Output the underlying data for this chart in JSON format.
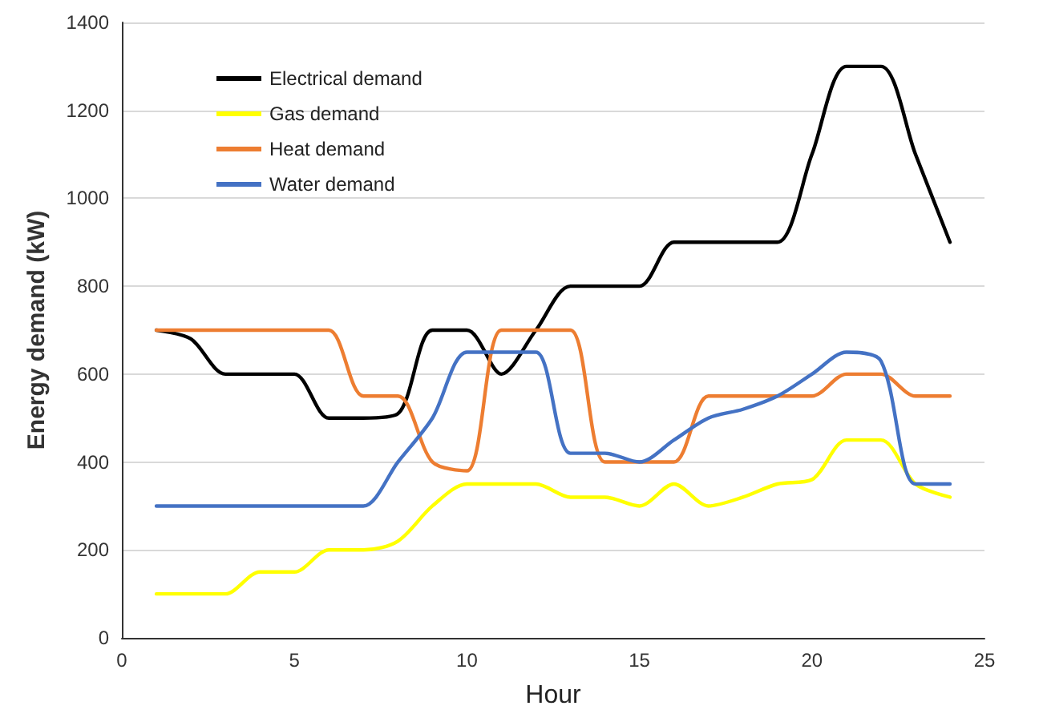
{
  "chart_data": {
    "type": "line",
    "xlabel": "Hour",
    "ylabel": "Energy demand (kW)",
    "x": [
      1,
      2,
      3,
      4,
      5,
      6,
      7,
      8,
      9,
      10,
      11,
      12,
      13,
      14,
      15,
      16,
      17,
      18,
      19,
      20,
      21,
      22,
      23,
      24
    ],
    "series": [
      {
        "name": "Electrical demand",
        "color": "#000000",
        "values": [
          700,
          680,
          600,
          600,
          600,
          500,
          500,
          510,
          700,
          700,
          600,
          700,
          800,
          800,
          800,
          900,
          900,
          900,
          900,
          1100,
          1300,
          1300,
          1100,
          900
        ]
      },
      {
        "name": "Gas demand",
        "color": "#ffff00",
        "values": [
          100,
          100,
          100,
          150,
          150,
          200,
          200,
          220,
          300,
          350,
          350,
          350,
          320,
          320,
          300,
          350,
          300,
          320,
          350,
          360,
          450,
          450,
          350,
          320
        ]
      },
      {
        "name": "Heat demand",
        "color": "#ed7d31",
        "values": [
          700,
          700,
          700,
          700,
          700,
          700,
          550,
          550,
          400,
          380,
          700,
          700,
          700,
          400,
          400,
          400,
          550,
          550,
          550,
          550,
          600,
          600,
          550,
          550
        ]
      },
      {
        "name": "Water demand",
        "color": "#4472c4",
        "values": [
          300,
          300,
          300,
          300,
          300,
          300,
          300,
          400,
          500,
          650,
          650,
          650,
          420,
          420,
          400,
          450,
          500,
          520,
          550,
          600,
          650,
          630,
          350,
          350
        ]
      }
    ],
    "xlim": [
      0,
      25
    ],
    "xticks": [
      0,
      5,
      10,
      15,
      20,
      25
    ],
    "ylim": [
      0,
      1400
    ],
    "yticks": [
      0,
      200,
      400,
      600,
      800,
      1000,
      1200,
      1400
    ],
    "grid": "y",
    "legend": "top left",
    "marker": "none",
    "line_style": "solid"
  }
}
